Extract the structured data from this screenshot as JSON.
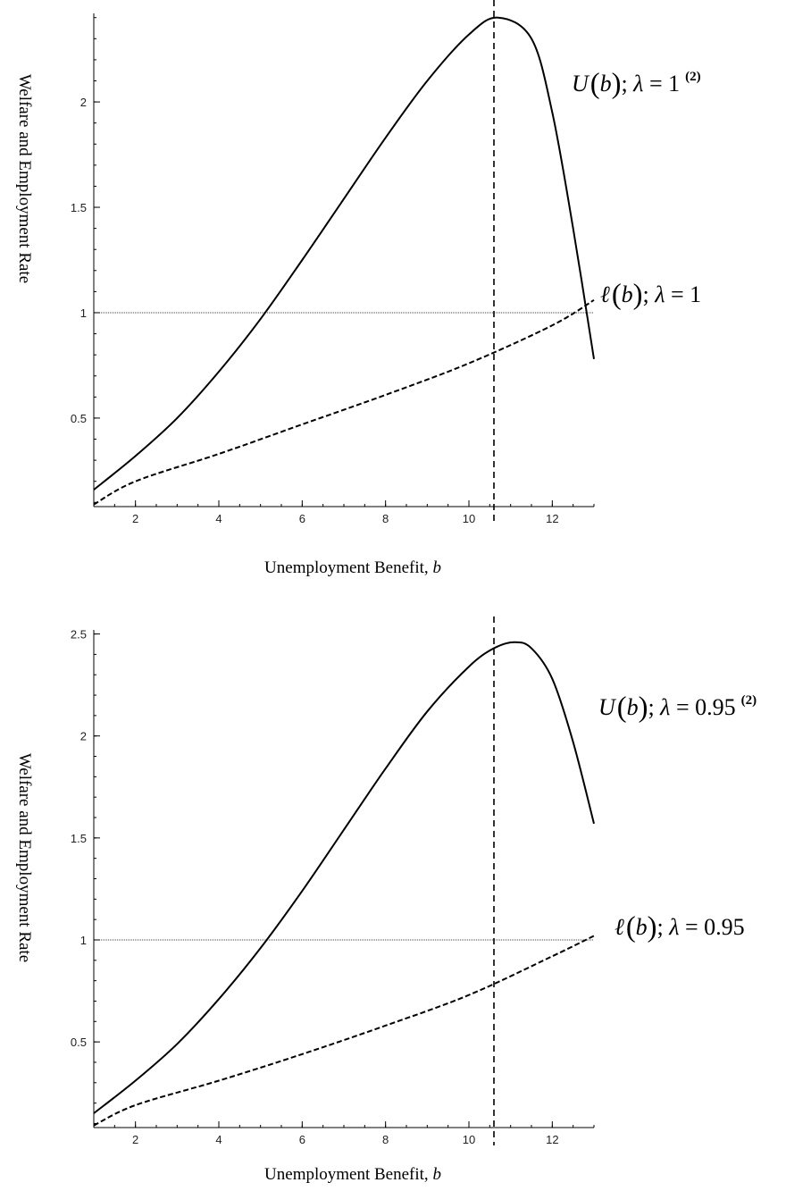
{
  "chart_data": [
    {
      "type": "line",
      "xlabel": "Unemployment Benefit, ",
      "xlabel_var": "b",
      "ylabel": "Welfare  and  Employment Rate",
      "xlim": [
        1,
        13
      ],
      "ylim": [
        0.08,
        2.42
      ],
      "x_ticks": [
        2,
        4,
        6,
        8,
        10,
        12
      ],
      "y_ticks": [
        0.5,
        1,
        1.5,
        2
      ],
      "reference_lines": {
        "horizontal_y": 1,
        "vertical_x": 10.6
      },
      "series": [
        {
          "label_math": {
            "fn": "U",
            "arg": "b",
            "lambda": "1",
            "note": "(2)"
          },
          "style": "solid",
          "x": [
            1,
            2,
            3,
            4,
            5,
            6,
            7,
            8,
            9,
            10,
            10.7,
            11.5,
            12,
            12.5,
            13
          ],
          "y": [
            0.16,
            0.32,
            0.5,
            0.72,
            0.97,
            1.25,
            1.54,
            1.83,
            2.1,
            2.32,
            2.4,
            2.3,
            1.95,
            1.4,
            0.78
          ]
        },
        {
          "label_math": {
            "fn": "ℓ",
            "arg": "b",
            "lambda": "1"
          },
          "style": "dashed",
          "x": [
            1,
            2,
            4,
            6,
            8,
            10,
            12,
            13
          ],
          "y": [
            0.09,
            0.2,
            0.33,
            0.47,
            0.61,
            0.76,
            0.94,
            1.06
          ]
        }
      ]
    },
    {
      "type": "line",
      "xlabel": "Unemployment Benefit, ",
      "xlabel_var": "b",
      "ylabel": "Welfare  and  Employment Rate",
      "xlim": [
        1,
        13
      ],
      "ylim": [
        0.08,
        2.52
      ],
      "x_ticks": [
        2,
        4,
        6,
        8,
        10,
        12
      ],
      "y_ticks": [
        0.5,
        1,
        1.5,
        2,
        2.5
      ],
      "reference_lines": {
        "horizontal_y": 1,
        "vertical_x": 10.6
      },
      "series": [
        {
          "label_math": {
            "fn": "U",
            "arg": "b",
            "lambda": "0.95",
            "note": "(2)"
          },
          "style": "solid",
          "x": [
            1,
            2,
            3,
            4,
            5,
            6,
            7,
            8,
            9,
            10,
            10.6,
            11.1,
            11.5,
            12,
            12.5,
            13
          ],
          "y": [
            0.15,
            0.31,
            0.49,
            0.71,
            0.96,
            1.24,
            1.54,
            1.84,
            2.12,
            2.34,
            2.43,
            2.46,
            2.43,
            2.28,
            1.97,
            1.57
          ]
        },
        {
          "label_math": {
            "fn": "ℓ",
            "arg": "b",
            "lambda": "0.95"
          },
          "style": "dashed",
          "x": [
            1,
            2,
            4,
            6,
            8,
            10,
            12,
            13
          ],
          "y": [
            0.09,
            0.19,
            0.31,
            0.44,
            0.58,
            0.73,
            0.92,
            1.02
          ]
        }
      ]
    }
  ]
}
